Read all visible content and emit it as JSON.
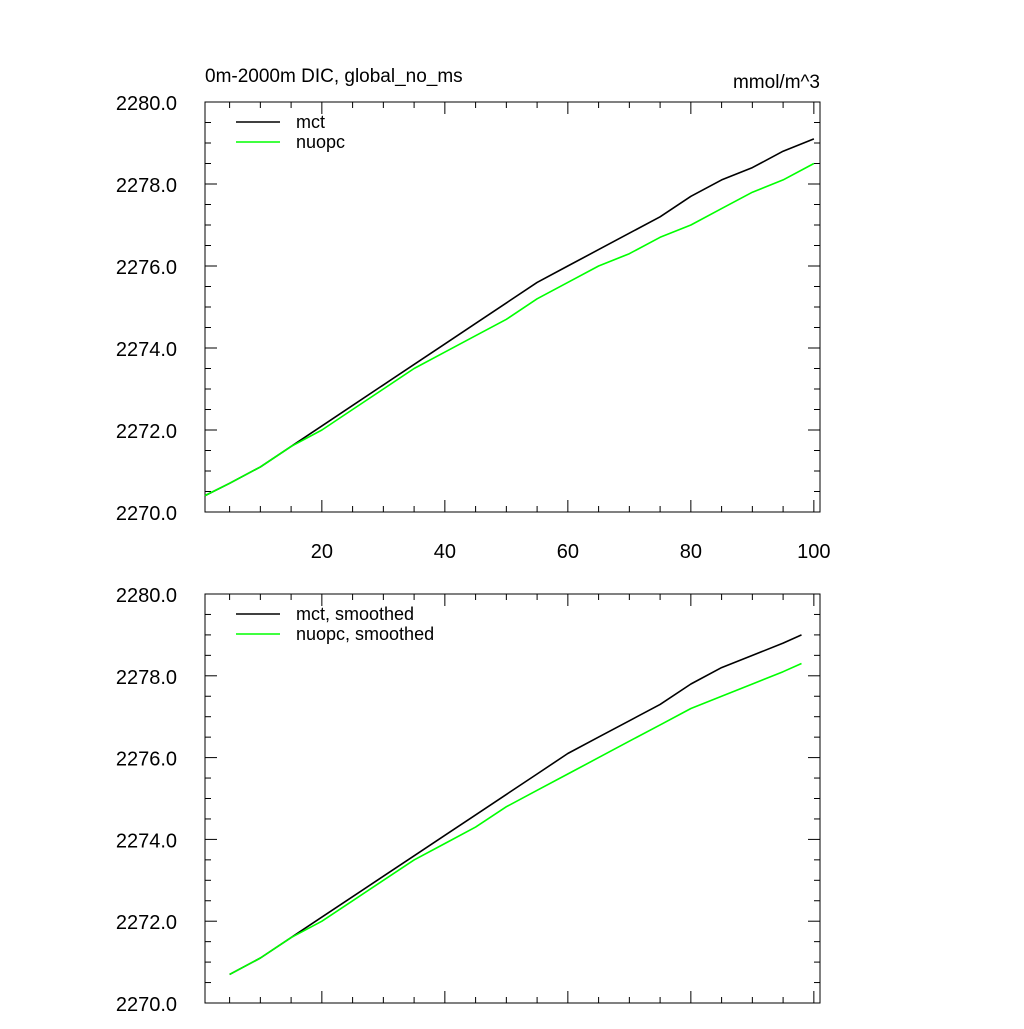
{
  "chart_data": [
    {
      "type": "line",
      "title": "0m-2000m DIC, global_no_ms",
      "units": "mmol/m^3",
      "xlim": [
        1,
        101
      ],
      "ylim": [
        2270,
        2280
      ],
      "xticks": [
        20,
        40,
        60,
        80,
        100
      ],
      "xtick_labels": [
        "20",
        "40",
        "60",
        "80",
        "100"
      ],
      "yticks": [
        2270,
        2272,
        2274,
        2276,
        2278,
        2280
      ],
      "ytick_labels": [
        "2270.0",
        "2272.0",
        "2274.0",
        "2276.0",
        "2278.0",
        "2280.0"
      ],
      "legend": "top-left",
      "grid": false,
      "x": [
        1,
        5,
        10,
        15,
        20,
        25,
        30,
        35,
        40,
        45,
        50,
        55,
        60,
        65,
        70,
        75,
        80,
        85,
        90,
        95,
        100
      ],
      "series": [
        {
          "name": "mct",
          "color": "#000000",
          "values": [
            2270.4,
            2270.7,
            2271.1,
            2271.6,
            2272.1,
            2272.6,
            2273.1,
            2273.6,
            2274.1,
            2274.6,
            2275.1,
            2275.6,
            2276.0,
            2276.4,
            2276.8,
            2277.2,
            2277.7,
            2278.1,
            2278.4,
            2278.8,
            2279.1
          ]
        },
        {
          "name": "nuopc",
          "color": "#00ff00",
          "values": [
            2270.4,
            2270.7,
            2271.1,
            2271.6,
            2272.0,
            2272.5,
            2273.0,
            2273.5,
            2273.9,
            2274.3,
            2274.7,
            2275.2,
            2275.6,
            2276.0,
            2276.3,
            2276.7,
            2277.0,
            2277.4,
            2277.8,
            2278.1,
            2278.5
          ]
        }
      ]
    },
    {
      "type": "line",
      "xlim": [
        1,
        101
      ],
      "ylim": [
        2270,
        2280
      ],
      "xticks": [
        20,
        40,
        60,
        80,
        100
      ],
      "yticks": [
        2270,
        2272,
        2274,
        2276,
        2278,
        2280
      ],
      "ytick_labels": [
        "2270.0",
        "2272.0",
        "2274.0",
        "2276.0",
        "2278.0",
        "2280.0"
      ],
      "legend": "top-left",
      "grid": false,
      "x": [
        5,
        10,
        15,
        20,
        25,
        30,
        35,
        40,
        45,
        50,
        55,
        60,
        65,
        70,
        75,
        80,
        85,
        90,
        95,
        98
      ],
      "series": [
        {
          "name": "mct, smoothed",
          "color": "#000000",
          "values": [
            2270.7,
            2271.1,
            2271.6,
            2272.1,
            2272.6,
            2273.1,
            2273.6,
            2274.1,
            2274.6,
            2275.1,
            2275.6,
            2276.1,
            2276.5,
            2276.9,
            2277.3,
            2277.8,
            2278.2,
            2278.5,
            2278.8,
            2279.0
          ]
        },
        {
          "name": "nuopc, smoothed",
          "color": "#00ff00",
          "values": [
            2270.7,
            2271.1,
            2271.6,
            2272.0,
            2272.5,
            2273.0,
            2273.5,
            2273.9,
            2274.3,
            2274.8,
            2275.2,
            2275.6,
            2276.0,
            2276.4,
            2276.8,
            2277.2,
            2277.5,
            2277.8,
            2278.1,
            2278.3
          ]
        }
      ]
    }
  ]
}
